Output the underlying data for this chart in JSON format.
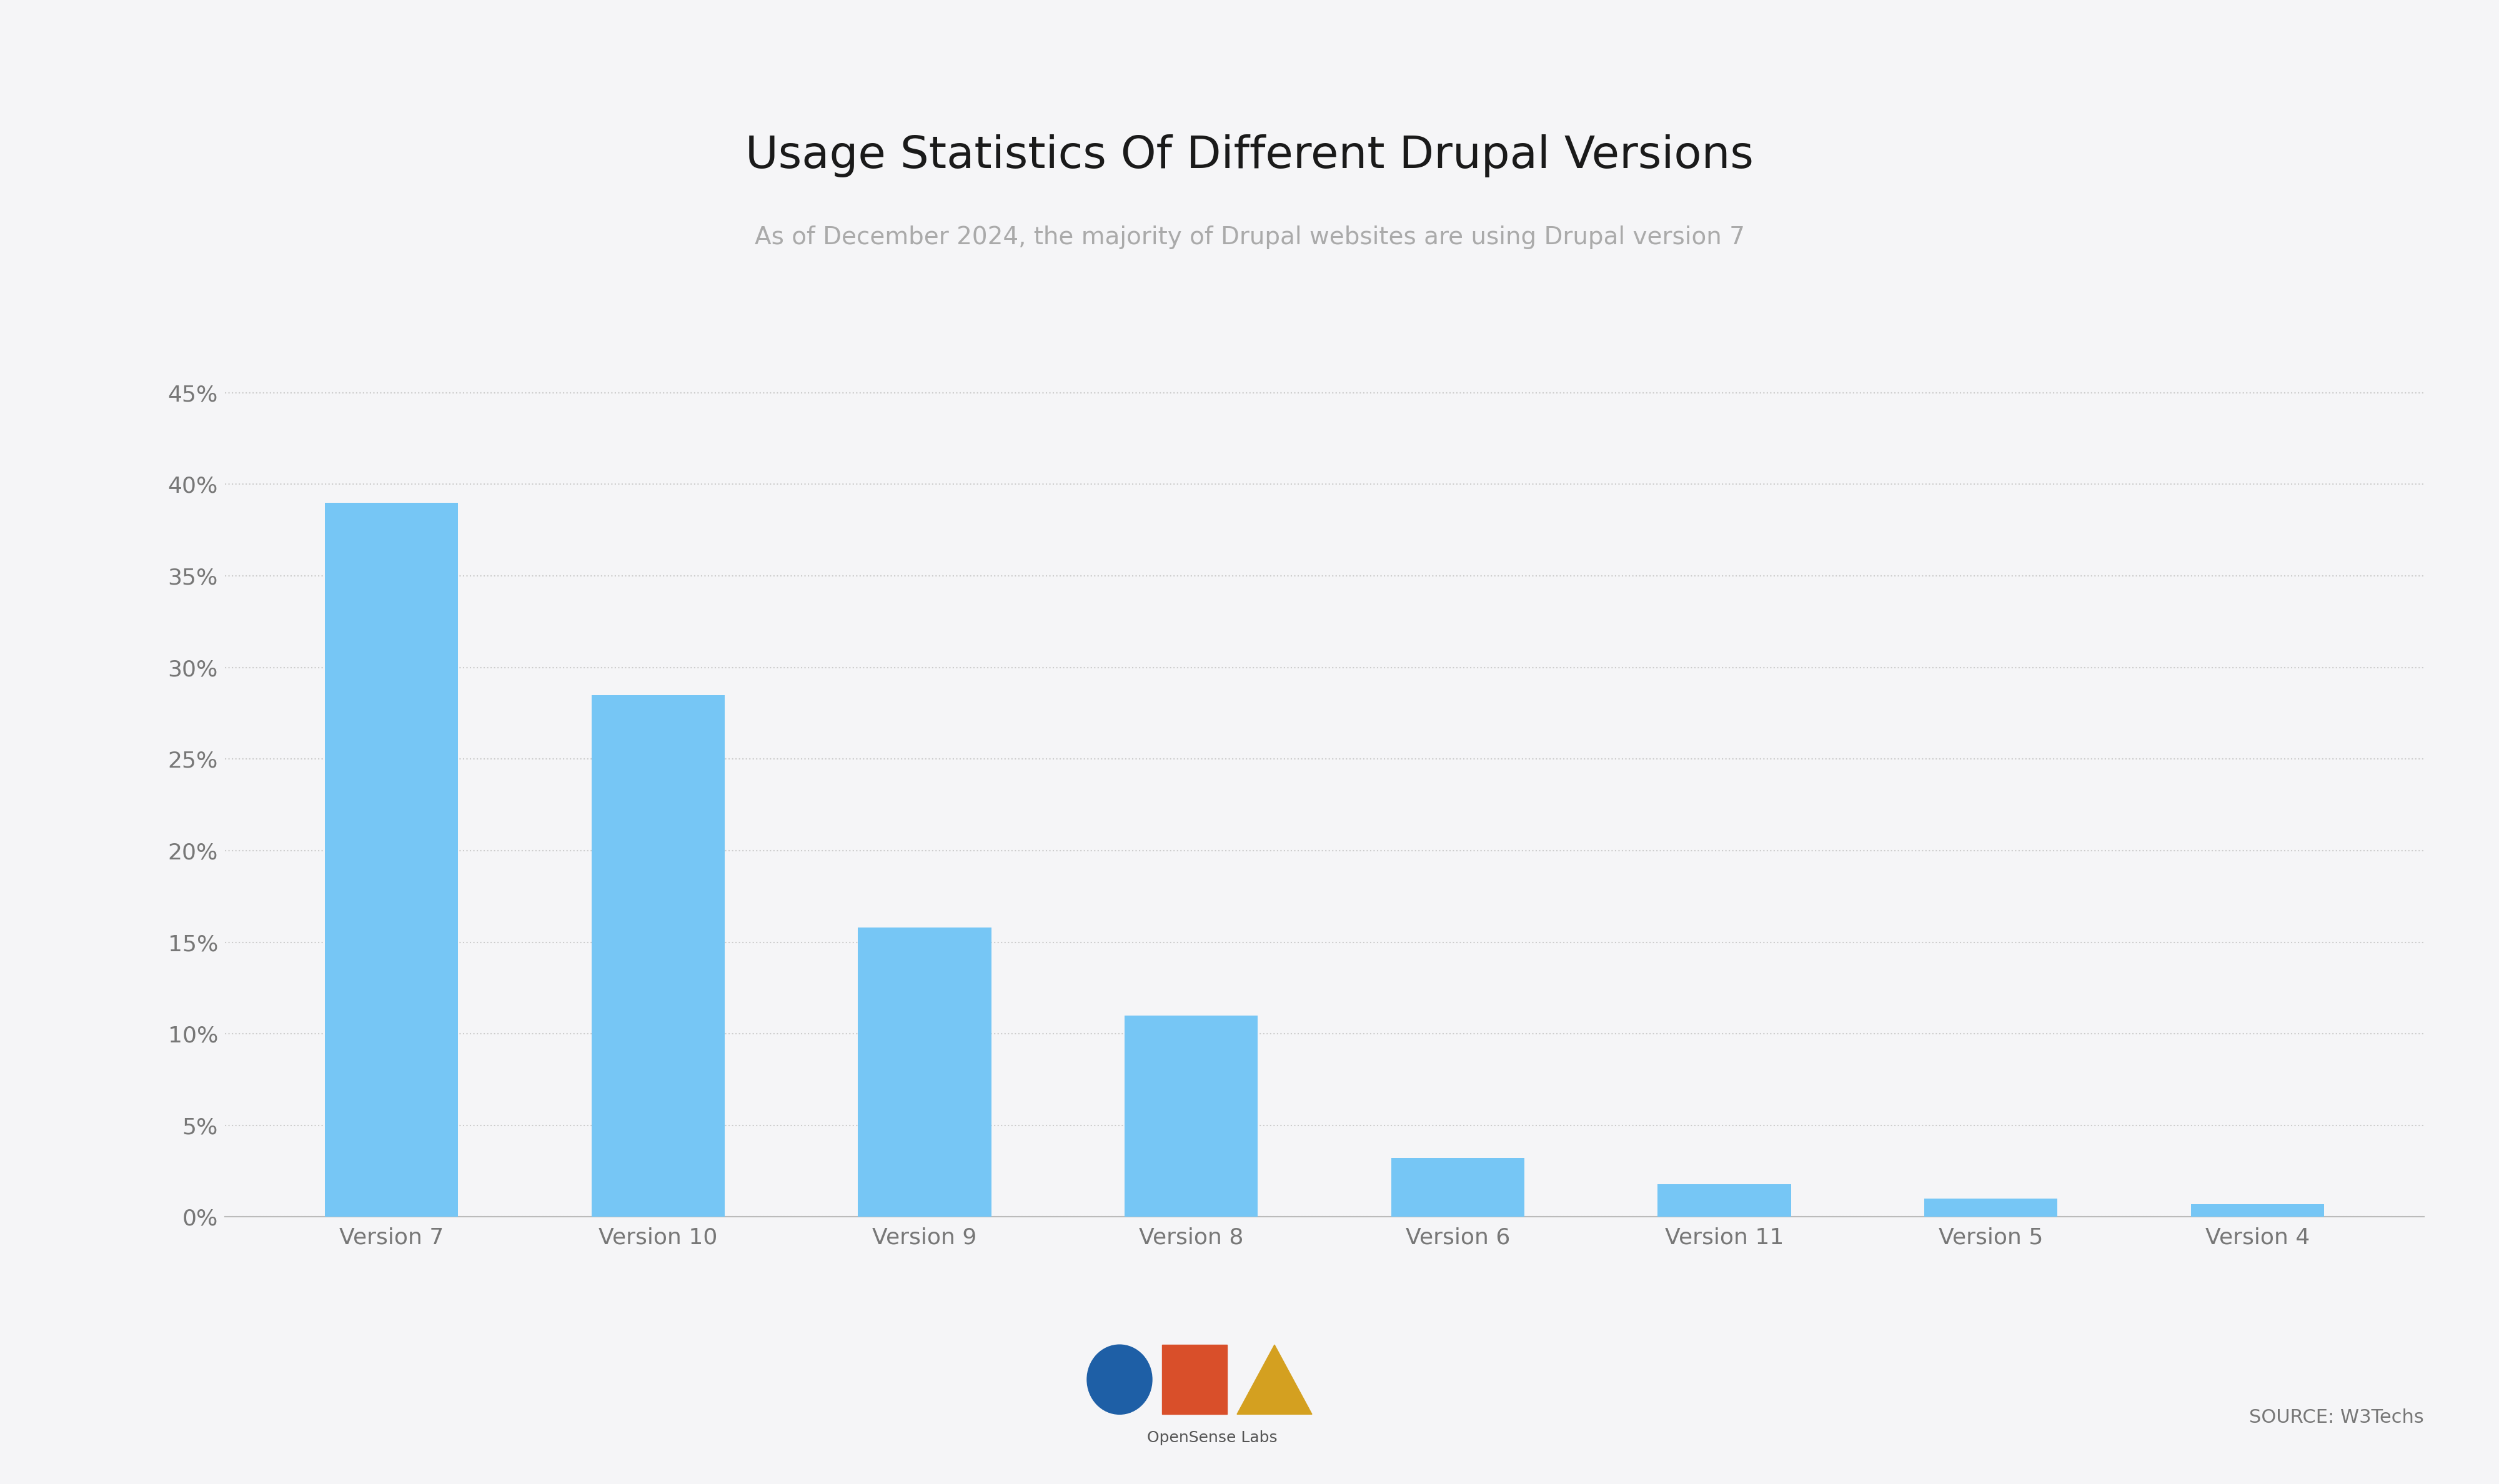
{
  "title": "Usage Statistics Of Different Drupal Versions",
  "subtitle": "As of December 2024, the majority of Drupal websites are using Drupal version 7",
  "source_text": "SOURCE: W3Techs",
  "categories": [
    "Version 7",
    "Version 10",
    "Version 9",
    "Version 8",
    "Version 6",
    "Version 11",
    "Version 5",
    "Version 4"
  ],
  "values": [
    39.0,
    28.5,
    15.8,
    11.0,
    3.2,
    1.8,
    1.0,
    0.7
  ],
  "bar_color": "#76C6F5",
  "background_color": "#F5F5F7",
  "title_color": "#1a1a1a",
  "subtitle_color": "#AAAAAA",
  "axis_label_color": "#777777",
  "grid_color": "#CCCCCC",
  "yticks": [
    0,
    5,
    10,
    15,
    20,
    25,
    30,
    35,
    40,
    45
  ],
  "ylim": [
    0,
    47
  ],
  "title_fontsize": 52,
  "subtitle_fontsize": 28,
  "tick_fontsize": 26,
  "source_fontsize": 22,
  "logo_circle_color": "#1E5FA6",
  "logo_square_color": "#D94F2A",
  "logo_triangle_color": "#D4A020",
  "logo_text_color": "#555555",
  "logo_fontsize": 18
}
